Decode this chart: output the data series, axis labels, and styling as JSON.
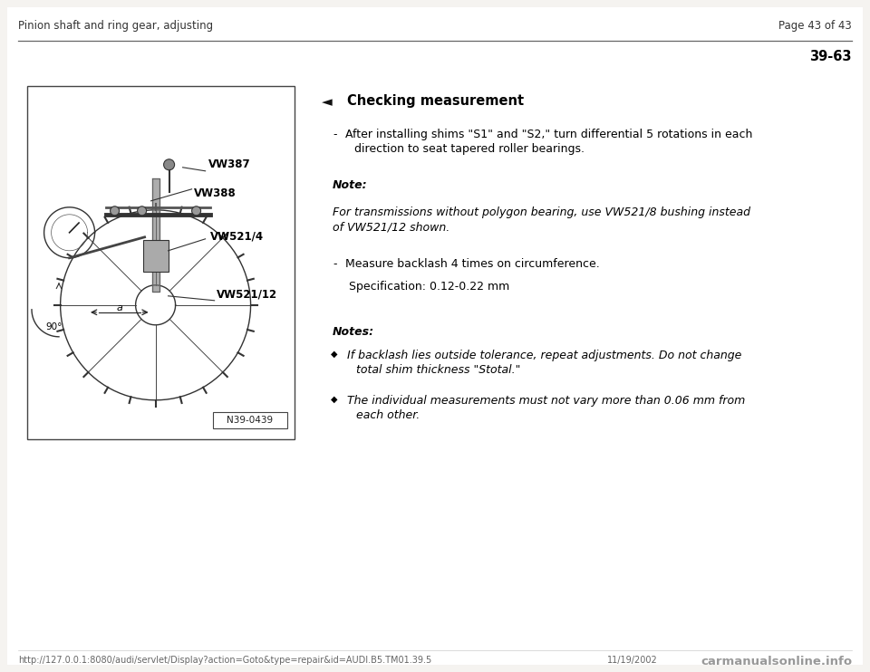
{
  "bg_color": "#f5f3f0",
  "page_bg": "#ffffff",
  "header_left": "Pinion shaft and ring gear, adjusting",
  "header_right": "Page 43 of 43",
  "section_number": "39-63",
  "title": "Checking measurement",
  "bullet_arrow": "◄",
  "bullet_diamond": "◆",
  "footer_url": "http://127.0.0.1:8080/audi/servlet/Display?action=Goto&type=repair&id=AUDI.B5.TM01.39.5",
  "footer_date": "11/19/2002",
  "footer_logo": "carmanualsonline.info",
  "image_caption": "N39-0439",
  "font_size_header": 8.5,
  "font_size_body": 9.0,
  "font_size_section": 10.5,
  "font_size_title": 10.5,
  "font_size_footer": 7.0
}
